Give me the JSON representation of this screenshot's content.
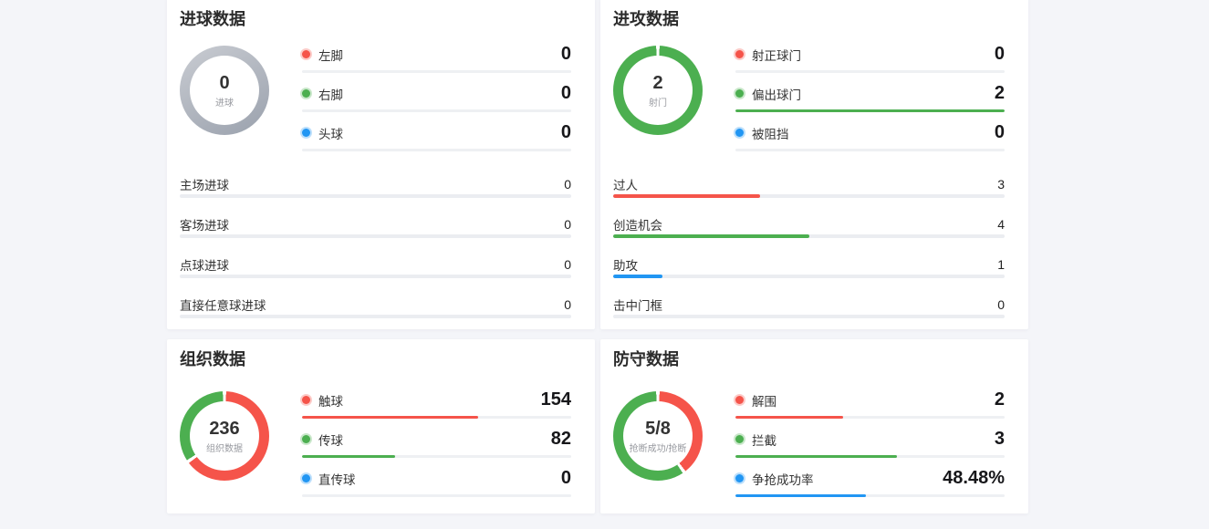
{
  "colors": {
    "red": "#f5544a",
    "green": "#4caf50",
    "blue": "#2196f3",
    "gray": "#ebedf1",
    "ring_light": "#c9ccd2",
    "ring_dark": "#9aa1ad",
    "track": "#ebedf1",
    "underline_track": "#eef0f3",
    "page_bg": "#f4f5f9"
  },
  "panels": [
    {
      "key": "goals",
      "title": "进球数据",
      "donut": {
        "center_value": "0",
        "center_label": "进球"
      },
      "legend": [
        {
          "label": "左脚",
          "value": "0",
          "value_num": 0,
          "color": "red",
          "pct": 0
        },
        {
          "label": "右脚",
          "value": "0",
          "value_num": 0,
          "color": "green",
          "pct": 0
        },
        {
          "label": "头球",
          "value": "0",
          "value_num": 0,
          "color": "blue",
          "pct": 0
        }
      ],
      "bars": [
        {
          "label": "主场进球",
          "value": "0",
          "color": "red",
          "pct": 0
        },
        {
          "label": "客场进球",
          "value": "0",
          "color": "green",
          "pct": 0
        },
        {
          "label": "点球进球",
          "value": "0",
          "color": "blue",
          "pct": 0
        },
        {
          "label": "直接任意球进球",
          "value": "0",
          "color": "gray",
          "pct": 0
        }
      ]
    },
    {
      "key": "attack",
      "title": "进攻数据",
      "donut": {
        "center_value": "2",
        "center_label": "射门"
      },
      "legend": [
        {
          "label": "射正球门",
          "value": "0",
          "value_num": 0,
          "color": "red",
          "pct": 0
        },
        {
          "label": "偏出球门",
          "value": "2",
          "value_num": 2,
          "color": "green",
          "pct": 100
        },
        {
          "label": "被阻挡",
          "value": "0",
          "value_num": 0,
          "color": "blue",
          "pct": 0
        }
      ],
      "bars": [
        {
          "label": "过人",
          "value": "3",
          "color": "red",
          "pct": 37.5
        },
        {
          "label": "创造机会",
          "value": "4",
          "color": "green",
          "pct": 50
        },
        {
          "label": "助攻",
          "value": "1",
          "color": "blue",
          "pct": 12.5
        },
        {
          "label": "击中门框",
          "value": "0",
          "color": "gray",
          "pct": 0
        }
      ]
    },
    {
      "key": "organization",
      "title": "组织数据",
      "donut": {
        "center_value": "236",
        "center_label": "组织数据"
      },
      "legend": [
        {
          "label": "触球",
          "value": "154",
          "value_num": 154,
          "color": "red",
          "pct": 65.3
        },
        {
          "label": "传球",
          "value": "82",
          "value_num": 82,
          "color": "green",
          "pct": 34.7
        },
        {
          "label": "直传球",
          "value": "0",
          "value_num": 0,
          "color": "blue",
          "pct": 0
        }
      ]
    },
    {
      "key": "defense",
      "title": "防守数据",
      "donut": {
        "center_value": "5/8",
        "center_label": "抢断成功/抢断"
      },
      "legend": [
        {
          "label": "解围",
          "value": "2",
          "value_num": 2,
          "color": "red",
          "pct": 40
        },
        {
          "label": "拦截",
          "value": "3",
          "value_num": 3,
          "color": "green",
          "pct": 60
        },
        {
          "label": "争抢成功率",
          "value": "48.48%",
          "value_num": 0,
          "color": "blue",
          "pct": 48.48,
          "in_donut": false
        }
      ]
    }
  ],
  "chart_data": [
    {
      "type": "pie",
      "title": "进球数据",
      "center_value": "0",
      "center_label": "进球",
      "slices": [
        {
          "label": "左脚",
          "value": 0,
          "color": "#f5544a"
        },
        {
          "label": "右脚",
          "value": 0,
          "color": "#4caf50"
        },
        {
          "label": "头球",
          "value": 0,
          "color": "#2196f3"
        }
      ],
      "extra_bars": [
        {
          "label": "主场进球",
          "value": 0
        },
        {
          "label": "客场进球",
          "value": 0
        },
        {
          "label": "点球进球",
          "value": 0
        },
        {
          "label": "直接任意球进球",
          "value": 0
        }
      ]
    },
    {
      "type": "pie",
      "title": "进攻数据",
      "center_value": "2",
      "center_label": "射门",
      "slices": [
        {
          "label": "射正球门",
          "value": 0,
          "color": "#f5544a"
        },
        {
          "label": "偏出球门",
          "value": 2,
          "color": "#4caf50"
        },
        {
          "label": "被阻挡",
          "value": 0,
          "color": "#2196f3"
        }
      ],
      "extra_bars": [
        {
          "label": "过人",
          "value": 3
        },
        {
          "label": "创造机会",
          "value": 4
        },
        {
          "label": "助攻",
          "value": 1
        },
        {
          "label": "击中门框",
          "value": 0
        }
      ],
      "extra_bars_scale_max": 8
    },
    {
      "type": "pie",
      "title": "组织数据",
      "center_value": "236",
      "center_label": "组织数据",
      "slices": [
        {
          "label": "触球",
          "value": 154,
          "color": "#f5544a"
        },
        {
          "label": "传球",
          "value": 82,
          "color": "#4caf50"
        },
        {
          "label": "直传球",
          "value": 0,
          "color": "#2196f3"
        }
      ]
    },
    {
      "type": "pie",
      "title": "防守数据",
      "center_value": "5/8",
      "center_label": "抢断成功/抢断",
      "slices": [
        {
          "label": "解围",
          "value": 2,
          "color": "#f5544a"
        },
        {
          "label": "拦截",
          "value": 3,
          "color": "#4caf50"
        }
      ],
      "extra_metrics": [
        {
          "label": "争抢成功率",
          "value": "48.48%"
        }
      ]
    }
  ]
}
